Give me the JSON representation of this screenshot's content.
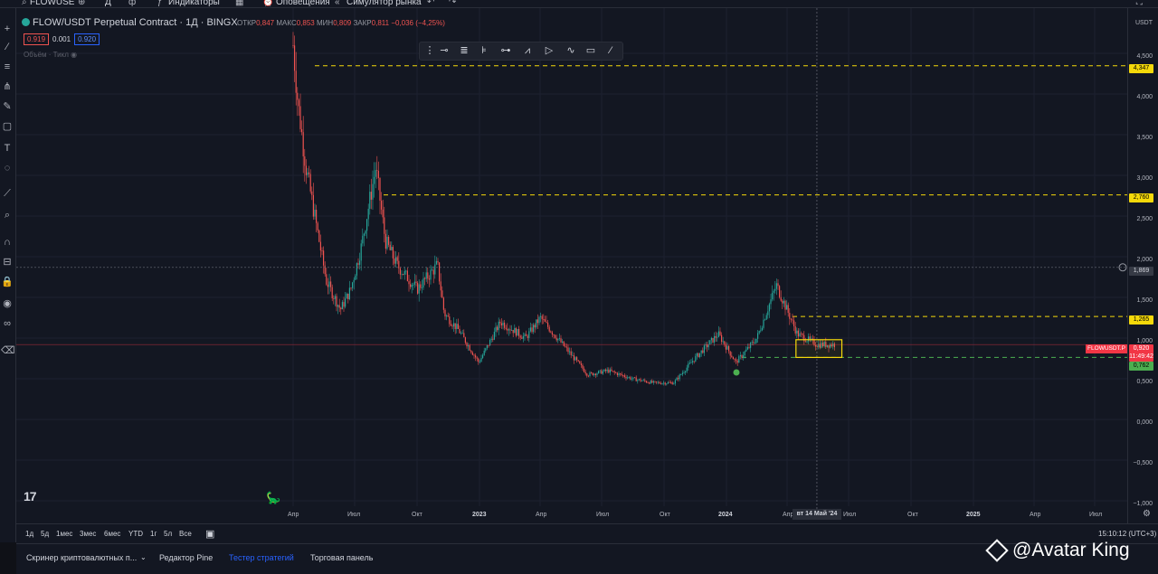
{
  "topbar": {
    "symbol": "FLOWUSE",
    "interval": "Д",
    "indicators_label": "Индикаторы",
    "alerts_label": "Оповещения",
    "replay_label": "Симулятор рынка"
  },
  "legend": {
    "title": "FLOW/USDT Perpetual Contract · 1Д · BINGX",
    "open_label": "ОТКР",
    "open_value": "0,847",
    "high_label": "МАКС",
    "high_value": "0,853",
    "low_label": "МИН",
    "low_value": "0,809",
    "close_label": "ЗАКР",
    "close_value": "0,811",
    "change": "−0,036 (−4,25%)",
    "sell_price": "0.919",
    "spread": "0.001",
    "buy_price": "0.920",
    "volume_label": "Объём · Тикл"
  },
  "y_axis": {
    "currency": "USDT",
    "ticks": [
      "4,500",
      "4,000",
      "3,500",
      "3,000",
      "2,500",
      "2,000",
      "1,500",
      "1,000",
      "0,500",
      "0,000",
      "−0,500",
      "−1,000"
    ],
    "badges": {
      "level_top": "4,347",
      "level_mid": "2,760",
      "crosshair": "1,869",
      "level_box_top": "1,265",
      "symbol_tag": "FLOWUSDT.P",
      "current_price": "0,920",
      "countdown": "11:49:42",
      "level_bottom": "0,762"
    }
  },
  "x_axis": {
    "ticks": [
      {
        "label": "Апр",
        "bold": false
      },
      {
        "label": "Июл",
        "bold": false
      },
      {
        "label": "Окт",
        "bold": false
      },
      {
        "label": "2023",
        "bold": true
      },
      {
        "label": "Апр",
        "bold": false
      },
      {
        "label": "Июл",
        "bold": false
      },
      {
        "label": "Окт",
        "bold": false
      },
      {
        "label": "2024",
        "bold": true
      },
      {
        "label": "Апр",
        "bold": false
      },
      {
        "label": "Июл",
        "bold": false
      },
      {
        "label": "Окт",
        "bold": false
      },
      {
        "label": "2025",
        "bold": true
      },
      {
        "label": "Апр",
        "bold": false
      },
      {
        "label": "Июл",
        "bold": false
      }
    ],
    "cursor_date": "вт 14 Май '24"
  },
  "range_buttons": [
    "1д",
    "5д",
    "1мес",
    "3мес",
    "6мес",
    "YTD",
    "1г",
    "5л",
    "Все"
  ],
  "clock": "15:10:12 (UTC+3)",
  "bottom_tabs": [
    {
      "label": "Скринер криптовалютных п...",
      "active": false
    },
    {
      "label": "Редактор Pine",
      "active": false
    },
    {
      "label": "Тестер стратегий",
      "active": true
    },
    {
      "label": "Торговая панель",
      "active": false
    }
  ],
  "watermark": "@Avatar King",
  "logo_text": "17",
  "colors": {
    "up": "#26a69a",
    "down": "#ef5350",
    "level_line": "#f5d90a",
    "green_level": "#4caf50",
    "accent": "#2962ff",
    "price_tag": "#f23645"
  },
  "chart_data": {
    "type": "candlestick",
    "title": "FLOW/USDT Perpetual Contract · 1Д · BINGX",
    "y_unit": "USDT",
    "ylim": [
      -1.0,
      4.9
    ],
    "x_period": [
      "2022-03",
      "2025-08"
    ],
    "approx_close_path": [
      {
        "date": "2022-04-01",
        "value": 4.6
      },
      {
        "date": "2022-04-08",
        "value": 3.9
      },
      {
        "date": "2022-04-20",
        "value": 3.1
      },
      {
        "date": "2022-05-05",
        "value": 2.4
      },
      {
        "date": "2022-05-20",
        "value": 1.7
      },
      {
        "date": "2022-06-10",
        "value": 1.35
      },
      {
        "date": "2022-06-25",
        "value": 1.6
      },
      {
        "date": "2022-07-10",
        "value": 2.1
      },
      {
        "date": "2022-08-01",
        "value": 3.1
      },
      {
        "date": "2022-08-15",
        "value": 2.2
      },
      {
        "date": "2022-09-01",
        "value": 1.9
      },
      {
        "date": "2022-10-01",
        "value": 1.6
      },
      {
        "date": "2022-10-31",
        "value": 1.9
      },
      {
        "date": "2022-11-10",
        "value": 1.3
      },
      {
        "date": "2022-12-01",
        "value": 1.1
      },
      {
        "date": "2022-12-31",
        "value": 0.7
      },
      {
        "date": "2023-02-01",
        "value": 1.2
      },
      {
        "date": "2023-03-10",
        "value": 1.0
      },
      {
        "date": "2023-04-01",
        "value": 1.25
      },
      {
        "date": "2023-05-01",
        "value": 0.95
      },
      {
        "date": "2023-06-10",
        "value": 0.55
      },
      {
        "date": "2023-07-10",
        "value": 0.6
      },
      {
        "date": "2023-08-15",
        "value": 0.5
      },
      {
        "date": "2023-09-15",
        "value": 0.45
      },
      {
        "date": "2023-10-15",
        "value": 0.45
      },
      {
        "date": "2023-11-15",
        "value": 0.75
      },
      {
        "date": "2023-12-20",
        "value": 1.05
      },
      {
        "date": "2024-01-15",
        "value": 0.7
      },
      {
        "date": "2024-02-15",
        "value": 1.0
      },
      {
        "date": "2024-03-15",
        "value": 1.65
      },
      {
        "date": "2024-04-15",
        "value": 1.05
      },
      {
        "date": "2024-05-14",
        "value": 0.92
      },
      {
        "date": "2024-06-10",
        "value": 0.92
      }
    ],
    "horizontal_levels": [
      4.347,
      2.76,
      1.265,
      0.762
    ],
    "consolidation_box": {
      "date_from": "2024-04-13",
      "date_to": "2024-06-20",
      "low": 0.762,
      "high": 0.98
    },
    "crosshair_value": 1.869,
    "current_price": 0.92
  }
}
